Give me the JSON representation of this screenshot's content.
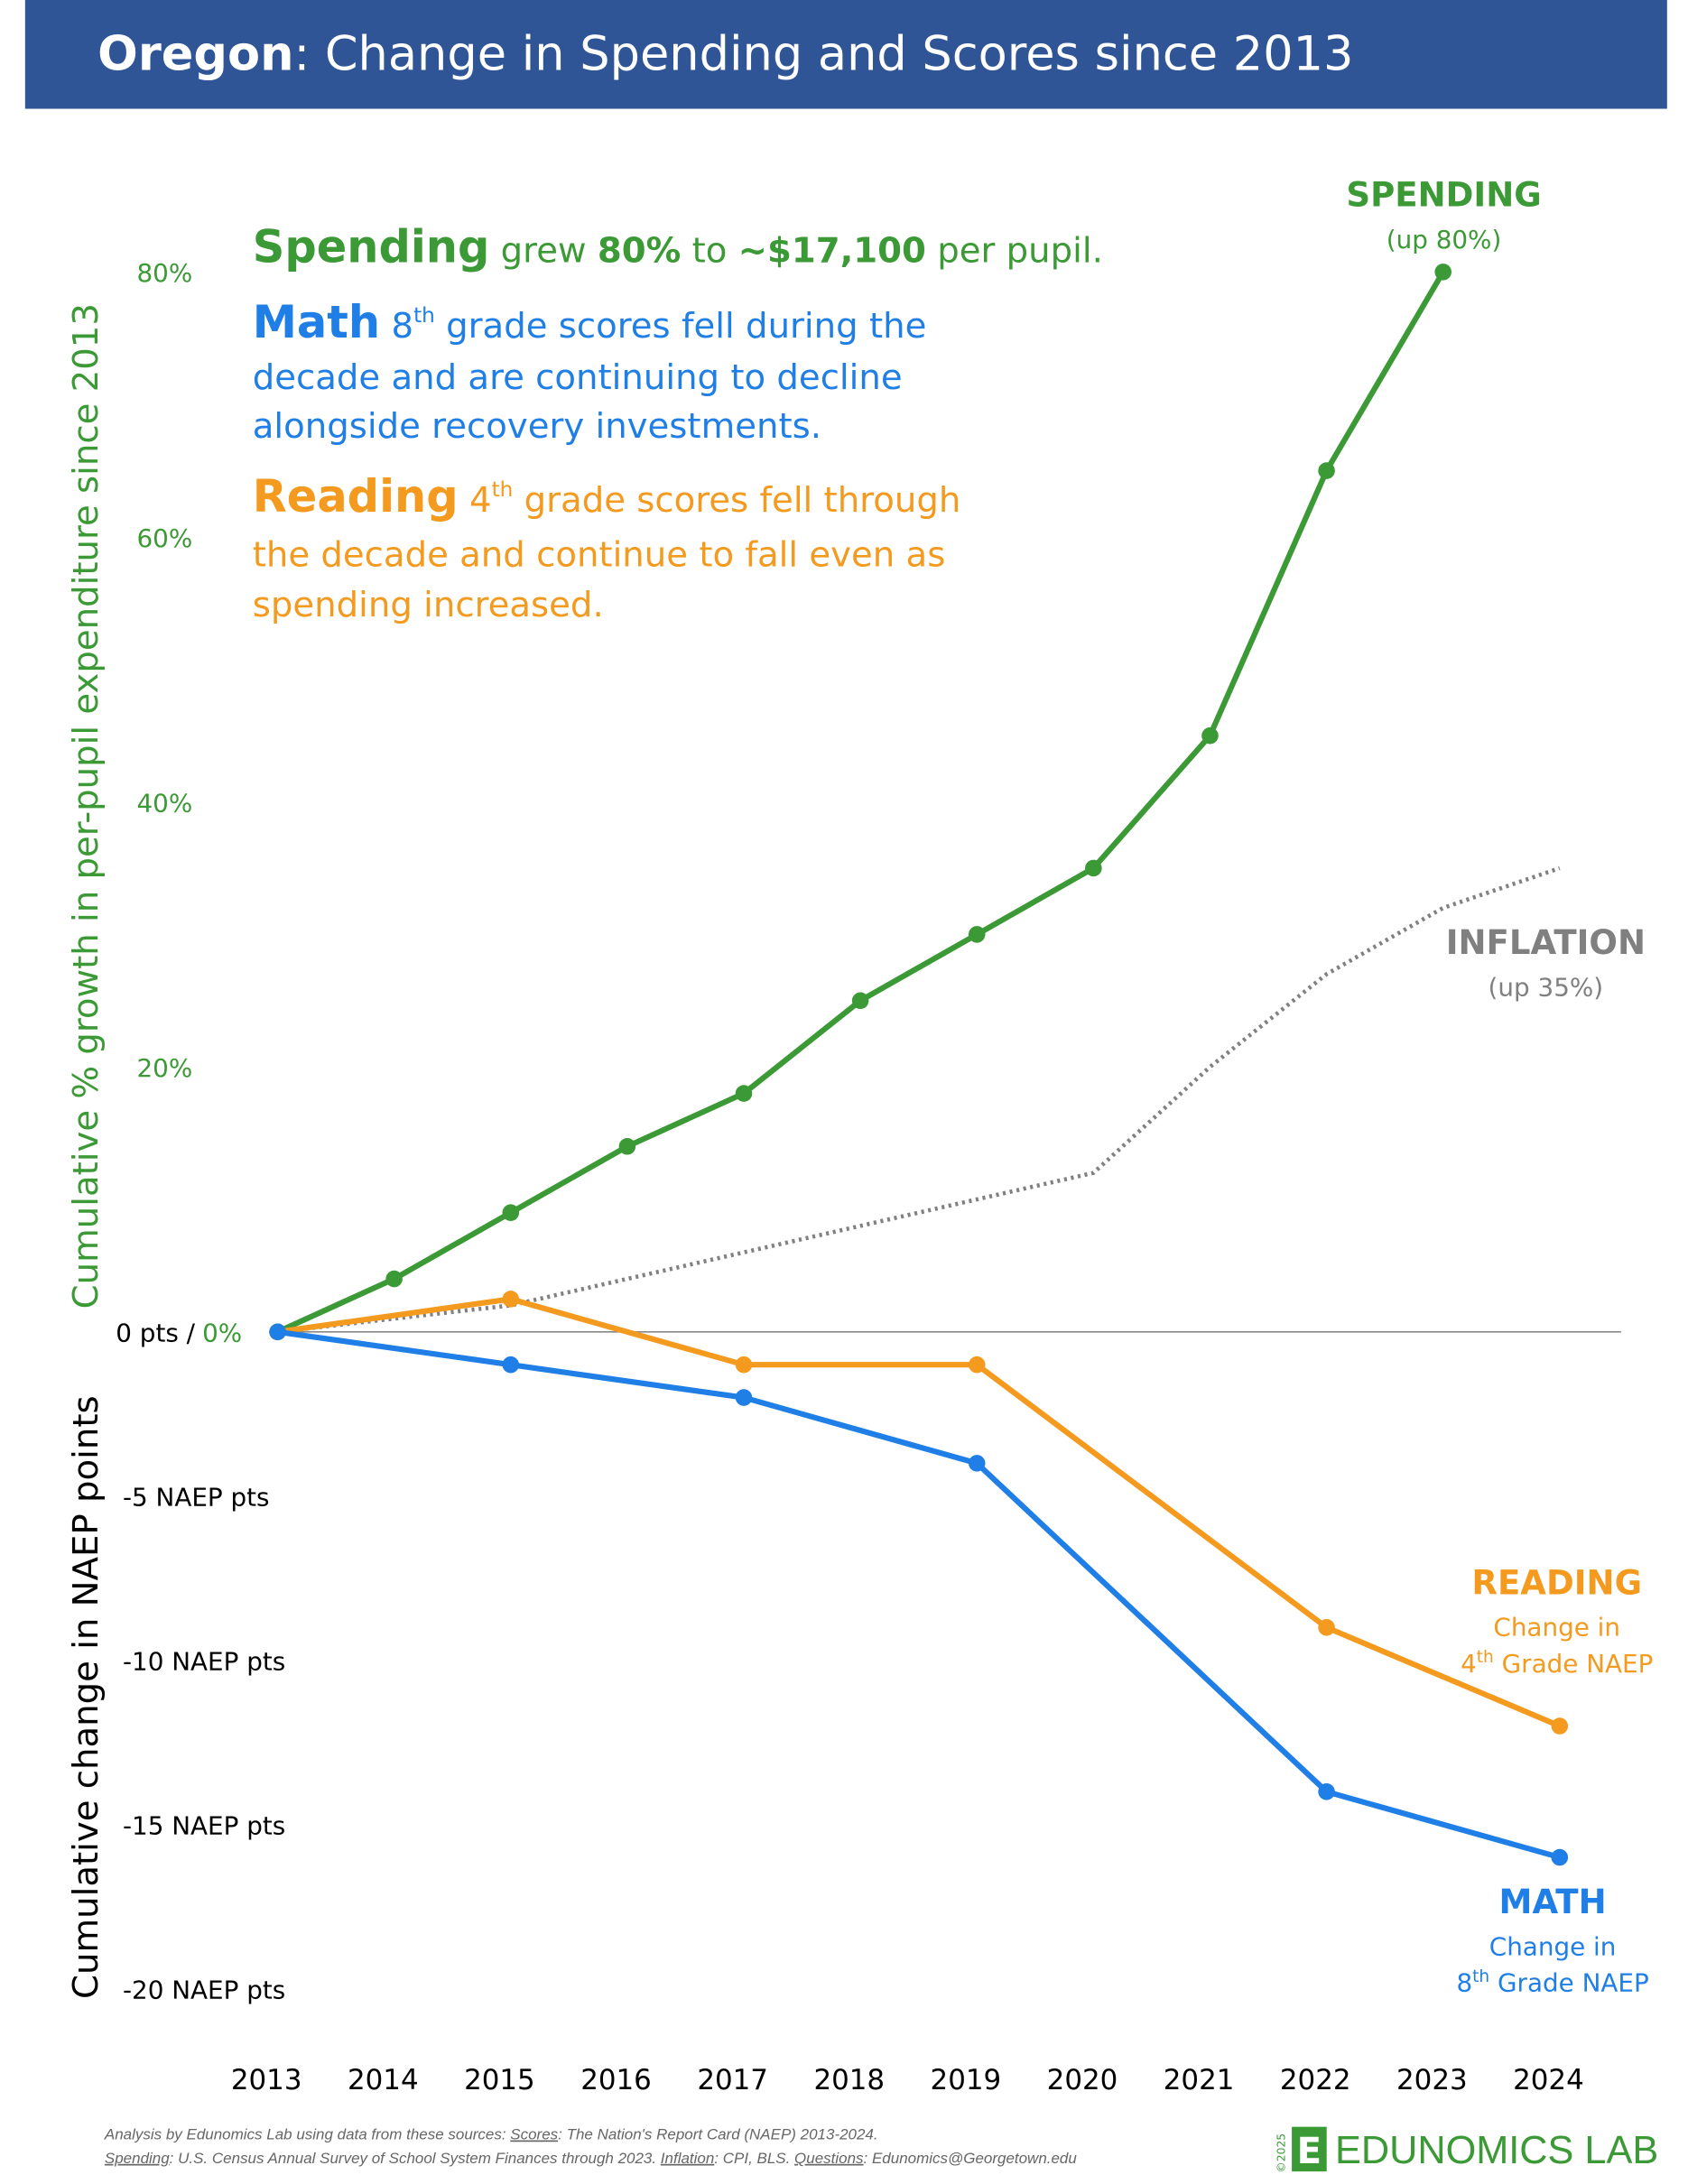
{
  "chart_data": {
    "type": "line",
    "title": {
      "state": "Oregon",
      "text": ": Change in Spending and Scores since 2013"
    },
    "notes": {
      "spending": {
        "head": "Spending",
        "t1": " grew ",
        "b1": "80%",
        "t2": " to ",
        "b2": "~$17,100",
        "t3": " per pupil."
      },
      "math": {
        "head": "Math",
        "sup_base": "8",
        "sup": "th",
        "lines": [
          " grade scores fell during the",
          "decade and are continuing to decline",
          "alongside recovery investments."
        ]
      },
      "reading": {
        "head": "Reading",
        "sup_base": "4",
        "sup": "th",
        "lines": [
          " grade scores fell through",
          "the decade and continue to fall even as",
          "spending increased."
        ]
      }
    },
    "y_label": "Cumulative % growth in per-pupil expenditure since 2013",
    "y2_label": "Cumulative change in NAEP points",
    "xlim": [
      2013,
      2024
    ],
    "xticks": [
      2013,
      2014,
      2015,
      2016,
      2017,
      2018,
      2019,
      2020,
      2021,
      2022,
      2023,
      2024
    ],
    "ylim": [
      0,
      80
    ],
    "yticks": [
      {
        "value": 0,
        "label": "0%"
      },
      {
        "value": 20,
        "label": "20%"
      },
      {
        "value": 40,
        "label": "40%"
      },
      {
        "value": 60,
        "label": "60%"
      },
      {
        "value": 80,
        "label": "80%"
      }
    ],
    "y2lim": [
      -20,
      0
    ],
    "y2ticks": [
      {
        "value": 0,
        "label": "0 pts /"
      },
      {
        "value": -5,
        "label": "-5 NAEP pts"
      },
      {
        "value": -10,
        "label": "-10 NAEP pts"
      },
      {
        "value": -15,
        "label": "-15 NAEP pts"
      },
      {
        "value": -20,
        "label": "-20 NAEP pts"
      }
    ],
    "series": [
      {
        "name": "SPENDING",
        "note": "(up 80%)",
        "color": "#3b9a35",
        "axis": "y",
        "markers": true,
        "x": [
          2013,
          2014,
          2015,
          2016,
          2017,
          2018,
          2019,
          2020,
          2021,
          2022,
          2023
        ],
        "values": [
          0,
          4,
          9,
          14,
          18,
          25,
          30,
          35,
          45,
          65,
          80
        ]
      },
      {
        "name": "INFLATION",
        "note": "(up 35%)",
        "color": "#808080",
        "axis": "y",
        "markers": false,
        "dotted": true,
        "x": [
          2013,
          2014,
          2015,
          2016,
          2017,
          2018,
          2019,
          2020,
          2021,
          2022,
          2023,
          2024
        ],
        "values": [
          0,
          1,
          2,
          4,
          6,
          8,
          10,
          12,
          20,
          27,
          32,
          35
        ]
      },
      {
        "name": "READING",
        "note": "Change in",
        "note2": {
          "base": "4",
          "sup": "th",
          "rest": " Grade NAEP"
        },
        "color": "#f39a1f",
        "axis": "y2",
        "markers": true,
        "x": [
          2013,
          2015,
          2017,
          2019,
          2022,
          2024
        ],
        "values": [
          0,
          1,
          -1,
          -1,
          -9,
          -12
        ]
      },
      {
        "name": "MATH",
        "note": "Change in",
        "note2": {
          "base": "8",
          "sup": "th",
          "rest": " Grade NAEP"
        },
        "color": "#1f7fe6",
        "axis": "y2",
        "markers": true,
        "x": [
          2013,
          2015,
          2017,
          2019,
          2022,
          2024
        ],
        "values": [
          0,
          -1,
          -2,
          -4,
          -14,
          -16
        ]
      }
    ],
    "footer": {
      "l1a": "Analysis by Edunomics Lab using data from these sources: ",
      "l1b": "Scores",
      "l1c": ": The Nation's Report Card (NAEP) 2013-2024.",
      "l2a": "Spending",
      "l2b": ": U.S. Census Annual Survey of School System Finances through 2023. ",
      "l2c": "Inflation",
      "l2d": ": CPI, BLS. ",
      "l2e": "Questions",
      "l2f": ": Edunomics@Georgetown.edu"
    },
    "logo": {
      "letter": "E",
      "name": "EDUNOMICS LAB",
      "copyright": "©2025"
    }
  }
}
